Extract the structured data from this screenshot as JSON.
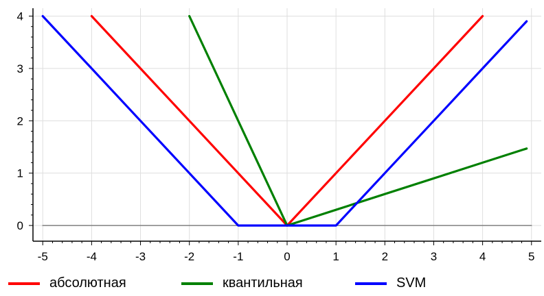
{
  "chart_data": {
    "type": "line",
    "title": "",
    "xlabel": "",
    "ylabel": "",
    "xlim": [
      -5.2,
      5.2
    ],
    "ylim": [
      -0.3,
      4.15
    ],
    "x_ticks": [
      -5,
      -4,
      -3,
      -2,
      -1,
      0,
      1,
      2,
      3,
      4,
      5
    ],
    "y_ticks": [
      0,
      1,
      2,
      3,
      4
    ],
    "grid": true,
    "legend_position": "bottom",
    "series": [
      {
        "name": "абсолютная",
        "color": "#ff0000",
        "x": [
          -4,
          -3,
          -2,
          -1,
          0,
          1,
          2,
          3,
          4
        ],
        "y": [
          4,
          3,
          2,
          1,
          0,
          1,
          2,
          3,
          4
        ]
      },
      {
        "name": "квантильная",
        "color": "#008000",
        "x": [
          -2,
          -1.5,
          -1,
          -0.5,
          0,
          1,
          2,
          3,
          4,
          4.9
        ],
        "y": [
          4,
          3,
          2,
          1,
          0,
          0.3,
          0.6,
          0.9,
          1.2,
          1.47
        ]
      },
      {
        "name": "SVM",
        "color": "#0000ff",
        "x": [
          -5,
          -4,
          -3,
          -2,
          -1,
          0,
          1,
          2,
          3,
          4,
          4.9
        ],
        "y": [
          4,
          3,
          2,
          1,
          0,
          0,
          0,
          1,
          2,
          3,
          3.9
        ]
      },
      {
        "name": "",
        "color": "#808080",
        "x": [
          -5,
          5
        ],
        "y": [
          0,
          0
        ]
      }
    ]
  }
}
